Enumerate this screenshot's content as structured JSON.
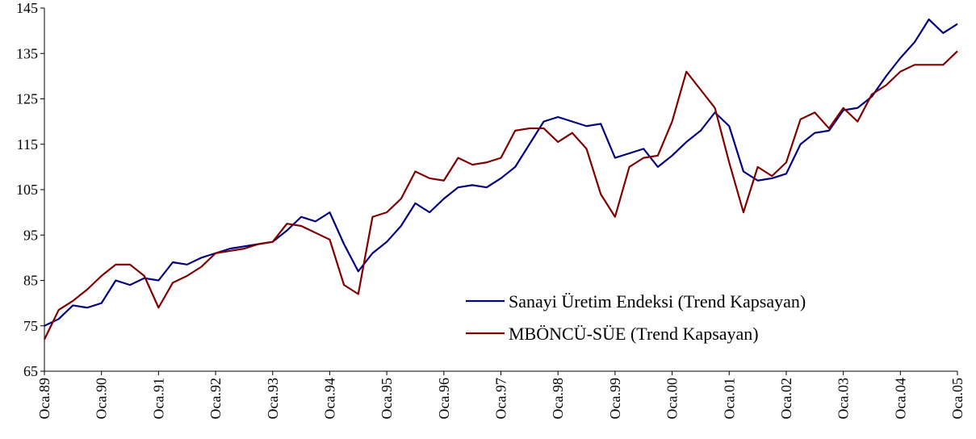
{
  "chart_data": {
    "type": "line",
    "categories": [
      "Oca.89",
      null,
      null,
      null,
      "Oca.90",
      null,
      null,
      null,
      "Oca.91",
      null,
      null,
      null,
      "Oca.92",
      null,
      null,
      null,
      "Oca.93",
      null,
      null,
      null,
      "Oca.94",
      null,
      null,
      null,
      "Oca.95",
      null,
      null,
      null,
      "Oca.96",
      null,
      null,
      null,
      "Oca.97",
      null,
      null,
      null,
      "Oca.98",
      null,
      null,
      null,
      "Oca.99",
      null,
      null,
      null,
      "Oca.00",
      null,
      null,
      null,
      "Oca.01",
      null,
      null,
      null,
      "Oca.02",
      null,
      null,
      null,
      "Oca.03",
      null,
      null,
      null,
      "Oca.04",
      null,
      null,
      null,
      "Oca.05"
    ],
    "series": [
      {
        "name": "Sanayi Üretim Endeksi (Trend Kapsayan)",
        "color": "#000080",
        "values": [
          75,
          76.5,
          79.5,
          79,
          80,
          85,
          84,
          85.5,
          85,
          89,
          88.5,
          90,
          91,
          92,
          92.5,
          93,
          93.5,
          96,
          99,
          98,
          100,
          93,
          87,
          91,
          93.5,
          97,
          102,
          100,
          103,
          105.5,
          106,
          105.5,
          107.5,
          110,
          115,
          120,
          121,
          120,
          119,
          119.5,
          112,
          113,
          114,
          110,
          112.5,
          115.5,
          118,
          122,
          119,
          109,
          107,
          107.5,
          108.5,
          115,
          117.5,
          118,
          122.5,
          123,
          125.5,
          130,
          134,
          137.5,
          142.5,
          139.5,
          141.5
        ]
      },
      {
        "name": "MBÖNCÜ-SÜE (Trend Kapsayan)",
        "color": "#800000",
        "values": [
          72,
          78.5,
          80.5,
          83,
          86,
          88.5,
          88.5,
          86,
          79,
          84.5,
          86,
          88,
          91,
          91.5,
          92,
          93,
          93.5,
          97.5,
          97,
          95.5,
          94,
          84,
          82,
          99,
          100,
          103,
          109,
          107.5,
          107,
          112,
          110.5,
          111,
          112,
          118,
          118.5,
          118.5,
          115.5,
          117.5,
          114,
          104,
          99,
          110,
          112,
          112.5,
          120,
          131,
          127,
          123,
          111,
          100,
          110,
          108,
          111,
          120.5,
          122,
          118.5,
          123,
          120,
          126,
          128,
          131,
          132.5,
          132.5,
          132.5,
          135.5
        ]
      }
    ],
    "ylim": [
      65,
      145
    ],
    "yticks": [
      65,
      75,
      85,
      95,
      105,
      115,
      125,
      135,
      145
    ]
  }
}
